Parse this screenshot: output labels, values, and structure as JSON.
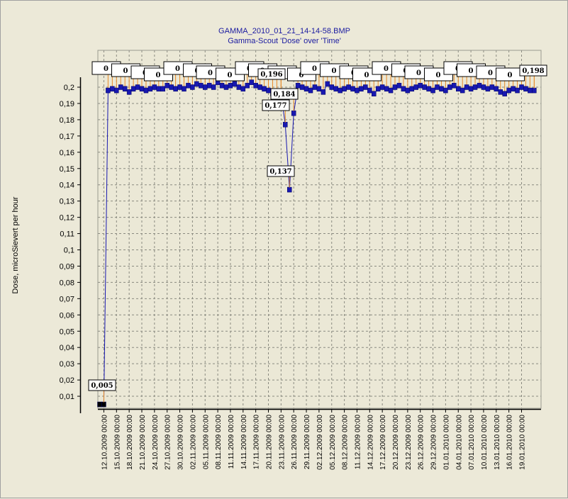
{
  "chart_data": {
    "type": "line",
    "title": "GAMMA_2010_01_21_14-14-58.BMP",
    "subtitle": "Gamma-Scout 'Dose' over 'Time'",
    "xlabel": "",
    "ylabel": "Dose, microSievert per hour",
    "ylim": [
      0,
      0.2
    ],
    "y_ticks": [
      "0,01",
      "0,02",
      "0,03",
      "0,04",
      "0,05",
      "0,06",
      "0,07",
      "0,08",
      "0,09",
      "0,1",
      "0,11",
      "0,12",
      "0,13",
      "0,14",
      "0,15",
      "0,16",
      "0,17",
      "0,18",
      "0,19",
      "0,2"
    ],
    "x_ticks": [
      "12.10.2009 00:00",
      "15.10.2009 00:00",
      "18.10.2009 00:00",
      "21.10.2009 00:00",
      "24.10.2009 00:00",
      "27.10.2009 00:00",
      "30.10.2009 00:00",
      "02.11.2009 00:00",
      "05.11.2009 00:00",
      "08.11.2009 00:00",
      "11.11.2009 00:00",
      "14.11.2009 00:00",
      "17.11.2009 00:00",
      "20.11.2009 00:00",
      "23.11.2009 00:00",
      "26.11.2009 00:00",
      "29.11.2009 00:00",
      "02.12.2009 00:00",
      "05.12.2009 00:00",
      "08.12.2009 00:00",
      "11.12.2009 00:00",
      "14.12.2009 00:00",
      "17.12.2009 00:00",
      "20.12.2009 00:00",
      "23.12.2009 00:00",
      "26.12.2009 00:00",
      "29.12.2009 00:00",
      "01.01.2010 00:00",
      "04.01.2010 00:00",
      "07.01.2010 00:00",
      "10.01.2010 00:00",
      "13.01.2010 00:00",
      "16.01.2010 00:00",
      "19.01.2010 00:00"
    ],
    "grid": true,
    "series": [
      {
        "color": "#1818b0",
        "x_start": "11.10.2009",
        "interval_days": 1,
        "values": [
          0.005,
          0.005,
          0.198,
          0.199,
          0.198,
          0.2,
          0.199,
          0.197,
          0.199,
          0.2,
          0.199,
          0.198,
          0.199,
          0.2,
          0.199,
          0.199,
          0.201,
          0.2,
          0.199,
          0.2,
          0.199,
          0.201,
          0.2,
          0.202,
          0.201,
          0.2,
          0.201,
          0.2,
          0.203,
          0.201,
          0.2,
          0.201,
          0.202,
          0.2,
          0.199,
          0.201,
          0.203,
          0.201,
          0.2,
          0.199,
          0.198,
          0.196,
          0.197,
          0.196,
          0.177,
          0.137,
          0.184,
          0.201,
          0.2,
          0.199,
          0.198,
          0.2,
          0.199,
          0.197,
          0.202,
          0.2,
          0.199,
          0.198,
          0.199,
          0.2,
          0.199,
          0.198,
          0.199,
          0.2,
          0.198,
          0.196,
          0.199,
          0.2,
          0.199,
          0.198,
          0.2,
          0.201,
          0.199,
          0.198,
          0.199,
          0.2,
          0.201,
          0.2,
          0.199,
          0.198,
          0.2,
          0.199,
          0.198,
          0.2,
          0.201,
          0.199,
          0.198,
          0.2,
          0.199,
          0.2,
          0.201,
          0.2,
          0.199,
          0.2,
          0.199,
          0.197,
          0.196,
          0.198,
          0.199,
          0.198,
          0.2,
          0.199,
          0.198,
          0.198
        ]
      }
    ],
    "annotations": [
      {
        "label": "0,005",
        "index": 1
      },
      {
        "label": "0,196",
        "index": 43
      },
      {
        "label": "0,184",
        "index": 46
      },
      {
        "label": "0,177",
        "index": 44
      },
      {
        "label": "0,137",
        "index": 45
      },
      {
        "label": "0,198",
        "index": 103
      }
    ],
    "overlapping_labels": [
      "0",
      "0",
      "0",
      "0",
      "0",
      "0",
      "0",
      "0",
      "0",
      "0",
      "0",
      "0",
      "0",
      "0",
      "0",
      "0",
      "0",
      "0",
      "0",
      "0",
      "0",
      "0",
      "0",
      "0"
    ]
  }
}
